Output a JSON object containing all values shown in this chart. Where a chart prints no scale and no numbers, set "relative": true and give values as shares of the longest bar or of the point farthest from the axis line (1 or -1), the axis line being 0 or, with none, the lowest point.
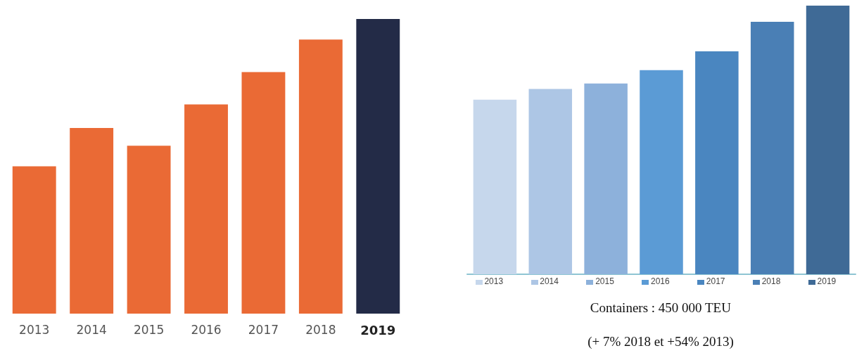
{
  "chart_data": [
    {
      "type": "bar",
      "relative": true,
      "categories": [
        "2013",
        "2014",
        "2015",
        "2016",
        "2017",
        "2018",
        "2019"
      ],
      "values": [
        0.5,
        0.63,
        0.57,
        0.71,
        0.82,
        0.93,
        1
      ],
      "colors": [
        "#ea6a35",
        "#ea6a35",
        "#ea6a35",
        "#ea6a35",
        "#ea6a35",
        "#ea6a35",
        "#232b47"
      ]
    },
    {
      "type": "bar",
      "relative": true,
      "categories": [
        "2013",
        "2014",
        "2015",
        "2016",
        "2017",
        "2018",
        "2019"
      ],
      "values": [
        0.65,
        0.69,
        0.71,
        0.76,
        0.83,
        0.94,
        1
      ],
      "colors": [
        "#c6d7ec",
        "#adc6e5",
        "#8db1db",
        "#5b9bd5",
        "#4a86c0",
        "#4a7fb5",
        "#3f6a96"
      ],
      "annotations": [
        "Containers : 450 000 TEU",
        "(+ 7% 2018 et +54% 2013)"
      ]
    }
  ]
}
